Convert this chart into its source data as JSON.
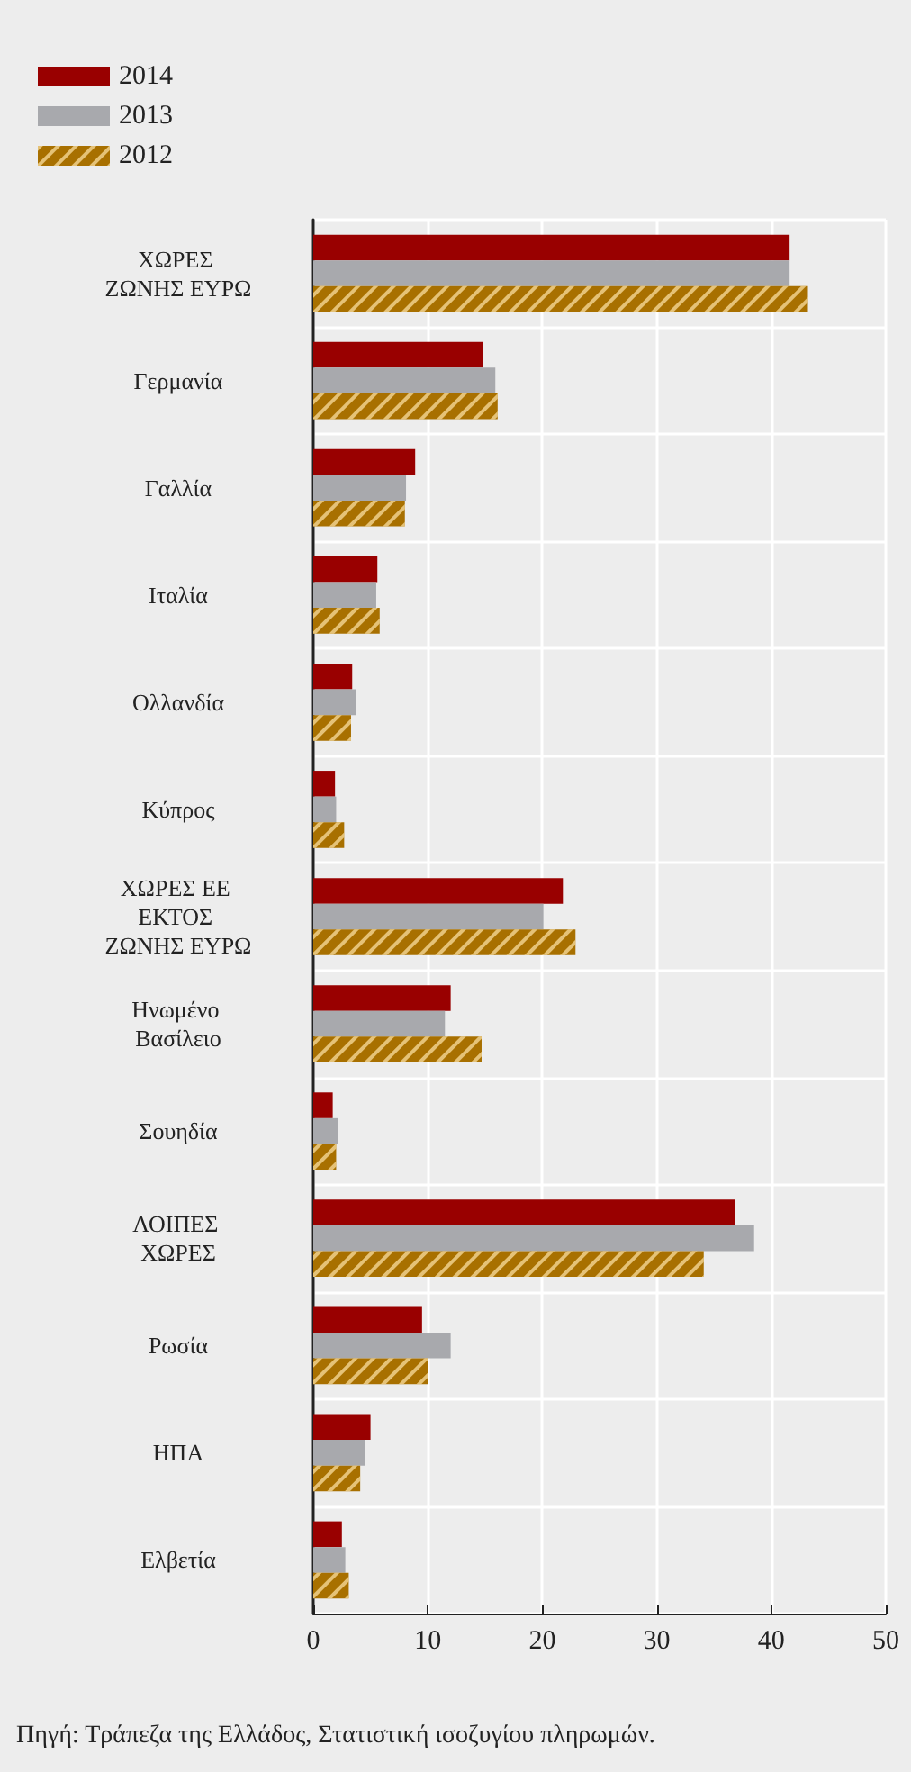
{
  "chart_data": {
    "type": "bar",
    "orientation": "horizontal",
    "categories": [
      "ΧΩΡΕΣ ΖΩΝΗΣ ΕΥΡΩ",
      "Γερμανία",
      "Γαλλία",
      "Ιταλία",
      "Ολλανδία",
      "Κύπρος",
      "ΧΩΡΕΣ ΕΕ ΕΚΤΟΣ ΖΩΝΗΣ ΕΥΡΩ",
      "Ηνωμένο Βασίλειο",
      "Σουηδία",
      "ΛΟΙΠΕΣ ΧΩΡΕΣ",
      "Ρωσία",
      "ΗΠΑ",
      "Ελβετία"
    ],
    "series": [
      {
        "name": "2014",
        "color": "#990000",
        "values": [
          41.6,
          14.8,
          8.9,
          5.6,
          3.4,
          1.9,
          21.8,
          12.0,
          1.7,
          36.8,
          9.5,
          5.0,
          2.5
        ]
      },
      {
        "name": "2013",
        "color": "#a8a9ad",
        "values": [
          41.6,
          15.9,
          8.1,
          5.5,
          3.7,
          2.0,
          20.1,
          11.5,
          2.2,
          38.5,
          12.0,
          4.5,
          2.8
        ]
      },
      {
        "name": "2012",
        "color": "#a87000",
        "values": [
          43.2,
          16.1,
          8.0,
          5.8,
          3.3,
          2.7,
          22.9,
          14.7,
          2.0,
          34.1,
          10.0,
          4.1,
          3.1
        ]
      }
    ],
    "xlim": [
      0,
      50
    ],
    "xticks": [
      0,
      10,
      20,
      30,
      40,
      50
    ],
    "grid": true,
    "legend": "top left",
    "annotations": [
      "Πηγή: Τράπεζα της Ελλάδος, Στατιστική ισοζυγίου πληρωμών."
    ]
  }
}
